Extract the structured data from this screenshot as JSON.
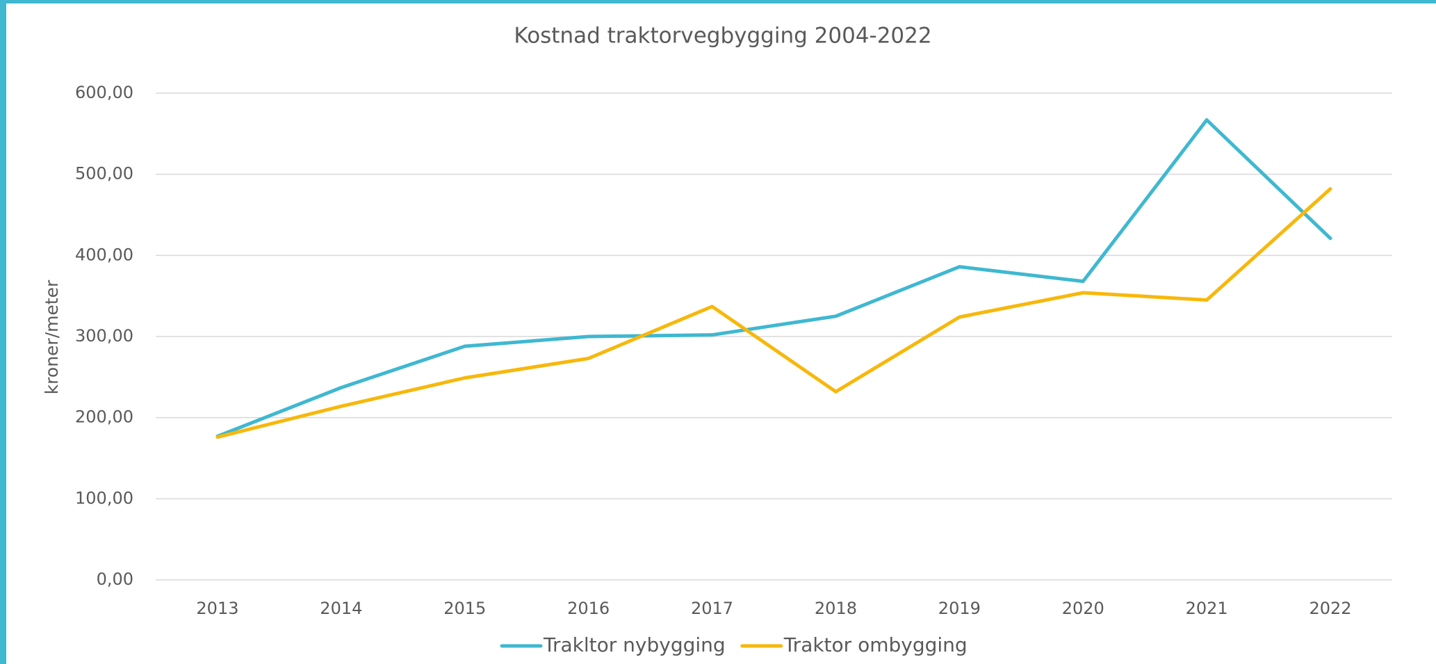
{
  "chart_data": {
    "type": "line",
    "title": "Kostnad traktorvegbygging 2004-2022",
    "y_label": "kroner/meter",
    "categories": [
      "2013",
      "2014",
      "2015",
      "2016",
      "2017",
      "2018",
      "2019",
      "2020",
      "2021",
      "2022"
    ],
    "series": [
      {
        "name": "Trakltor nybygging",
        "color": "#3fb8d0",
        "values": [
          177,
          237,
          288,
          300,
          302,
          325,
          386,
          368,
          567,
          421
        ]
      },
      {
        "name": "Traktor ombygging",
        "color": "#f7b80c",
        "values": [
          176,
          214,
          249,
          273,
          337,
          232,
          324,
          354,
          345,
          482
        ]
      }
    ],
    "ylim": [
      0,
      600
    ],
    "yticks": [
      {
        "value": 0,
        "label": "0,00"
      },
      {
        "value": 100,
        "label": "100,00"
      },
      {
        "value": 200,
        "label": "200,00"
      },
      {
        "value": 300,
        "label": "300,00"
      },
      {
        "value": 400,
        "label": "400,00"
      },
      {
        "value": 500,
        "label": "500,00"
      },
      {
        "value": 600,
        "label": "600,00"
      }
    ],
    "grid": true,
    "legend": "bottom"
  }
}
